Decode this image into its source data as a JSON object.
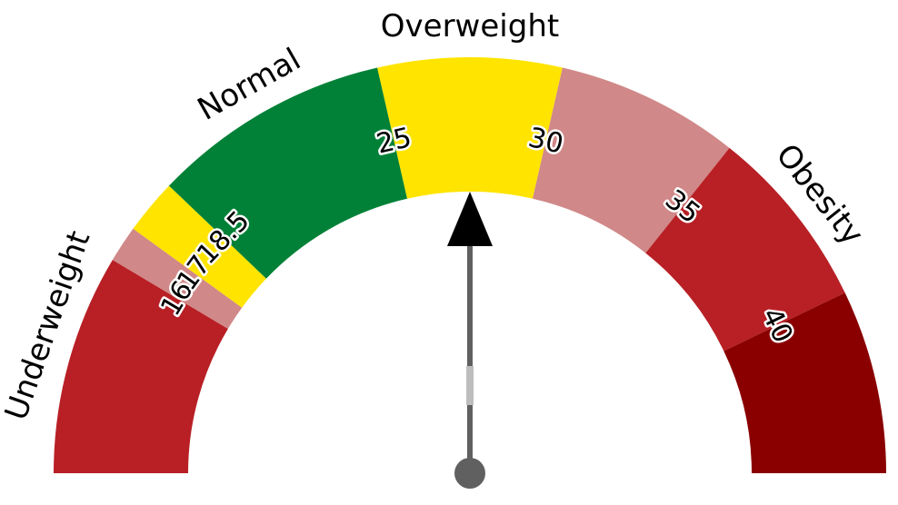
{
  "chart_data": {
    "type": "gauge",
    "title": "",
    "scale": {
      "min": 10,
      "max": 45
    },
    "bands": [
      {
        "from": 10,
        "to": 16,
        "color": "#B82025"
      },
      {
        "from": 16,
        "to": 17,
        "color": "#D08888"
      },
      {
        "from": 17,
        "to": 18.5,
        "color": "#FFE400"
      },
      {
        "from": 18.5,
        "to": 25,
        "color": "#008137"
      },
      {
        "from": 25,
        "to": 30,
        "color": "#FFE400"
      },
      {
        "from": 30,
        "to": 35,
        "color": "#D08888"
      },
      {
        "from": 35,
        "to": 40,
        "color": "#B82025"
      },
      {
        "from": 40,
        "to": 45,
        "color": "#8A0000"
      }
    ],
    "ticks": [
      {
        "value": 16,
        "label": "16"
      },
      {
        "value": 17,
        "label": "17"
      },
      {
        "value": 18.5,
        "label": "18.5"
      },
      {
        "value": 25,
        "label": "25"
      },
      {
        "value": 30,
        "label": "30"
      },
      {
        "value": 35,
        "label": "35"
      },
      {
        "value": 40,
        "label": "40"
      }
    ],
    "category_labels": [
      {
        "text": "Underweight",
        "position": 13.75
      },
      {
        "text": "Normal",
        "position": 21.75
      },
      {
        "text": "Overweight",
        "position": 27.5
      },
      {
        "text": "Obesity",
        "position": 37.5
      }
    ],
    "needle": {
      "value": 27.5,
      "color": "#606060"
    }
  }
}
